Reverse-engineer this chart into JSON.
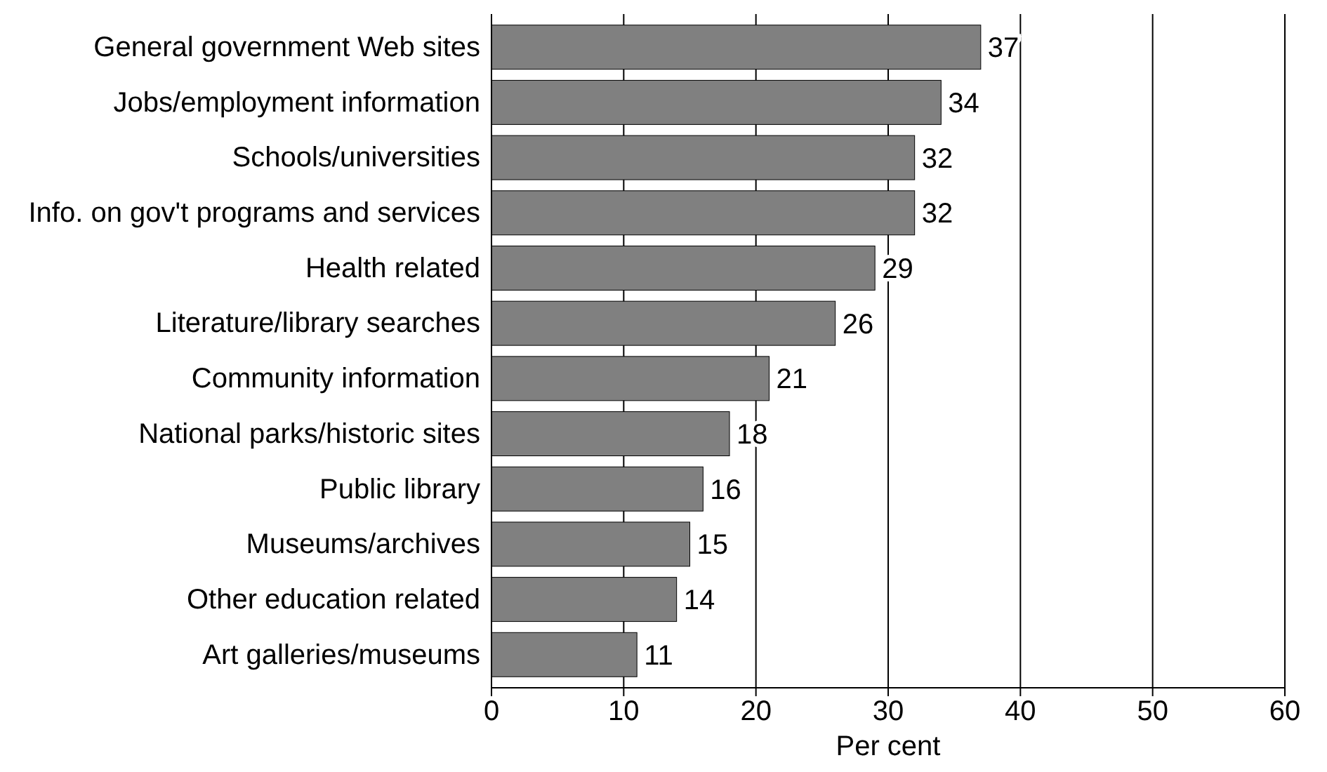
{
  "chart_data": {
    "type": "bar",
    "orientation": "horizontal",
    "xlabel": "Per cent",
    "categories": [
      "General government Web sites",
      "Jobs/employment information",
      "Schools/universities",
      "Info. on gov't programs and services",
      "Health related",
      "Literature/library searches",
      "Community information",
      "National parks/historic sites",
      "Public library",
      "Museums/archives",
      "Other education related",
      "Art galleries/museums"
    ],
    "values": [
      37,
      34,
      32,
      32,
      29,
      26,
      21,
      18,
      16,
      15,
      14,
      11
    ],
    "color": "#808080",
    "xlim": [
      0,
      60
    ],
    "xticks": [
      0,
      10,
      20,
      30,
      40,
      50,
      60
    ],
    "grid": "x",
    "data_labels": true
  }
}
